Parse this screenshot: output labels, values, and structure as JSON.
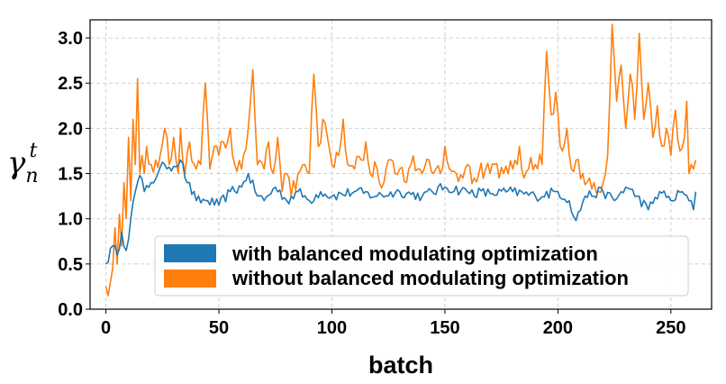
{
  "chart_data": {
    "type": "line",
    "title": "",
    "xlabel": "batch",
    "ylabel": {
      "base": "γ",
      "sub": "n",
      "sup": "t"
    },
    "xlim": [
      -7,
      268
    ],
    "ylim": [
      0.0,
      3.2
    ],
    "xticks": [
      0,
      50,
      100,
      150,
      200,
      250
    ],
    "xtick_labels": [
      "0",
      "50",
      "100",
      "150",
      "200",
      "250"
    ],
    "yticks": [
      0.0,
      0.5,
      1.0,
      1.5,
      2.0,
      2.5,
      3.0
    ],
    "ytick_labels": [
      "0.0",
      "0.5",
      "1.0",
      "1.5",
      "2.0",
      "2.5",
      "3.0"
    ],
    "grid": true,
    "legend_position": "lower-right",
    "series": [
      {
        "name": "with balanced modulating optimization",
        "color": "#1f77b4",
        "anchors": [
          [
            0,
            0.5
          ],
          [
            3,
            0.7
          ],
          [
            5,
            0.6
          ],
          [
            7,
            0.85
          ],
          [
            9,
            0.65
          ],
          [
            11,
            1.0
          ],
          [
            13,
            1.3
          ],
          [
            15,
            1.48
          ],
          [
            17,
            1.3
          ],
          [
            20,
            1.4
          ],
          [
            23,
            1.5
          ],
          [
            26,
            1.6
          ],
          [
            30,
            1.58
          ],
          [
            33,
            1.65
          ],
          [
            36,
            1.4
          ],
          [
            40,
            1.2
          ],
          [
            45,
            1.2
          ],
          [
            50,
            1.15
          ],
          [
            55,
            1.3
          ],
          [
            60,
            1.35
          ],
          [
            63,
            1.5
          ],
          [
            66,
            1.3
          ],
          [
            70,
            1.2
          ],
          [
            75,
            1.35
          ],
          [
            80,
            1.2
          ],
          [
            85,
            1.3
          ],
          [
            90,
            1.2
          ],
          [
            95,
            1.3
          ],
          [
            100,
            1.25
          ],
          [
            110,
            1.3
          ],
          [
            120,
            1.25
          ],
          [
            130,
            1.3
          ],
          [
            140,
            1.25
          ],
          [
            150,
            1.35
          ],
          [
            160,
            1.3
          ],
          [
            170,
            1.28
          ],
          [
            180,
            1.3
          ],
          [
            190,
            1.25
          ],
          [
            200,
            1.3
          ],
          [
            205,
            1.2
          ],
          [
            208,
            0.98
          ],
          [
            212,
            1.25
          ],
          [
            220,
            1.3
          ],
          [
            225,
            1.2
          ],
          [
            230,
            1.35
          ],
          [
            235,
            1.25
          ],
          [
            240,
            1.1
          ],
          [
            245,
            1.3
          ],
          [
            250,
            1.2
          ],
          [
            255,
            1.3
          ],
          [
            258,
            1.2
          ],
          [
            260,
            1.1
          ],
          [
            261,
            1.3
          ]
        ],
        "wiggle": 0.06
      },
      {
        "name": "without balanced modulating optimization",
        "color": "#ff7f0e",
        "anchors": [
          [
            0,
            0.25
          ],
          [
            1,
            0.15
          ],
          [
            2,
            0.3
          ],
          [
            3,
            0.45
          ],
          [
            4,
            0.9
          ],
          [
            5,
            0.5
          ],
          [
            6,
            1.05
          ],
          [
            7,
            0.7
          ],
          [
            8,
            1.4
          ],
          [
            9,
            1.0
          ],
          [
            10,
            1.9
          ],
          [
            11,
            1.2
          ],
          [
            12,
            2.1
          ],
          [
            13,
            1.6
          ],
          [
            14,
            2.55
          ],
          [
            15,
            1.5
          ],
          [
            16,
            1.7
          ],
          [
            17,
            1.5
          ],
          [
            18,
            1.8
          ],
          [
            20,
            1.6
          ],
          [
            22,
            1.65
          ],
          [
            24,
            1.7
          ],
          [
            26,
            2.0
          ],
          [
            28,
            1.6
          ],
          [
            30,
            1.9
          ],
          [
            32,
            1.5
          ],
          [
            33,
            2.0
          ],
          [
            35,
            1.5
          ],
          [
            37,
            1.85
          ],
          [
            40,
            1.55
          ],
          [
            42,
            1.6
          ],
          [
            44,
            2.5
          ],
          [
            46,
            1.55
          ],
          [
            48,
            1.8
          ],
          [
            50,
            1.7
          ],
          [
            52,
            1.85
          ],
          [
            55,
            2.0
          ],
          [
            57,
            1.6
          ],
          [
            60,
            1.55
          ],
          [
            63,
            2.0
          ],
          [
            65,
            2.65
          ],
          [
            67,
            1.6
          ],
          [
            70,
            1.55
          ],
          [
            72,
            1.85
          ],
          [
            74,
            1.5
          ],
          [
            76,
            1.9
          ],
          [
            78,
            1.3
          ],
          [
            80,
            1.5
          ],
          [
            82,
            1.25
          ],
          [
            85,
            1.5
          ],
          [
            88,
            1.6
          ],
          [
            90,
            1.5
          ],
          [
            92,
            2.6
          ],
          [
            94,
            1.8
          ],
          [
            96,
            2.1
          ],
          [
            98,
            1.9
          ],
          [
            100,
            1.6
          ],
          [
            103,
            1.7
          ],
          [
            105,
            2.1
          ],
          [
            107,
            1.6
          ],
          [
            110,
            1.55
          ],
          [
            113,
            1.65
          ],
          [
            115,
            1.85
          ],
          [
            117,
            1.5
          ],
          [
            120,
            1.55
          ],
          [
            123,
            1.4
          ],
          [
            125,
            1.65
          ],
          [
            128,
            1.5
          ],
          [
            130,
            1.55
          ],
          [
            133,
            1.4
          ],
          [
            135,
            1.6
          ],
          [
            138,
            1.55
          ],
          [
            140,
            1.5
          ],
          [
            143,
            1.65
          ],
          [
            145,
            1.5
          ],
          [
            148,
            1.5
          ],
          [
            150,
            1.8
          ],
          [
            152,
            1.55
          ],
          [
            155,
            1.5
          ],
          [
            158,
            1.45
          ],
          [
            160,
            1.6
          ],
          [
            163,
            1.45
          ],
          [
            165,
            1.5
          ],
          [
            168,
            1.55
          ],
          [
            170,
            1.5
          ],
          [
            172,
            1.6
          ],
          [
            174,
            1.45
          ],
          [
            176,
            1.5
          ],
          [
            178,
            1.5
          ],
          [
            180,
            1.55
          ],
          [
            183,
            1.8
          ],
          [
            185,
            1.45
          ],
          [
            187,
            1.55
          ],
          [
            190,
            1.6
          ],
          [
            193,
            1.6
          ],
          [
            195,
            2.85
          ],
          [
            197,
            2.15
          ],
          [
            199,
            2.4
          ],
          [
            201,
            1.8
          ],
          [
            204,
            2.0
          ],
          [
            206,
            1.55
          ],
          [
            208,
            1.65
          ],
          [
            211,
            1.5
          ],
          [
            214,
            1.45
          ],
          [
            216,
            1.4
          ],
          [
            218,
            1.3
          ],
          [
            220,
            1.4
          ],
          [
            222,
            1.7
          ],
          [
            224,
            3.15
          ],
          [
            226,
            2.3
          ],
          [
            228,
            2.7
          ],
          [
            230,
            2.0
          ],
          [
            232,
            2.6
          ],
          [
            234,
            2.1
          ],
          [
            236,
            3.05
          ],
          [
            238,
            2.1
          ],
          [
            240,
            2.5
          ],
          [
            242,
            1.9
          ],
          [
            244,
            2.25
          ],
          [
            246,
            1.8
          ],
          [
            248,
            2.0
          ],
          [
            250,
            1.7
          ],
          [
            252,
            2.2
          ],
          [
            254,
            1.75
          ],
          [
            256,
            1.9
          ],
          [
            257,
            2.3
          ],
          [
            258,
            1.5
          ],
          [
            259,
            1.6
          ],
          [
            260,
            1.55
          ],
          [
            261,
            1.65
          ]
        ],
        "wiggle": 0.12
      }
    ]
  }
}
